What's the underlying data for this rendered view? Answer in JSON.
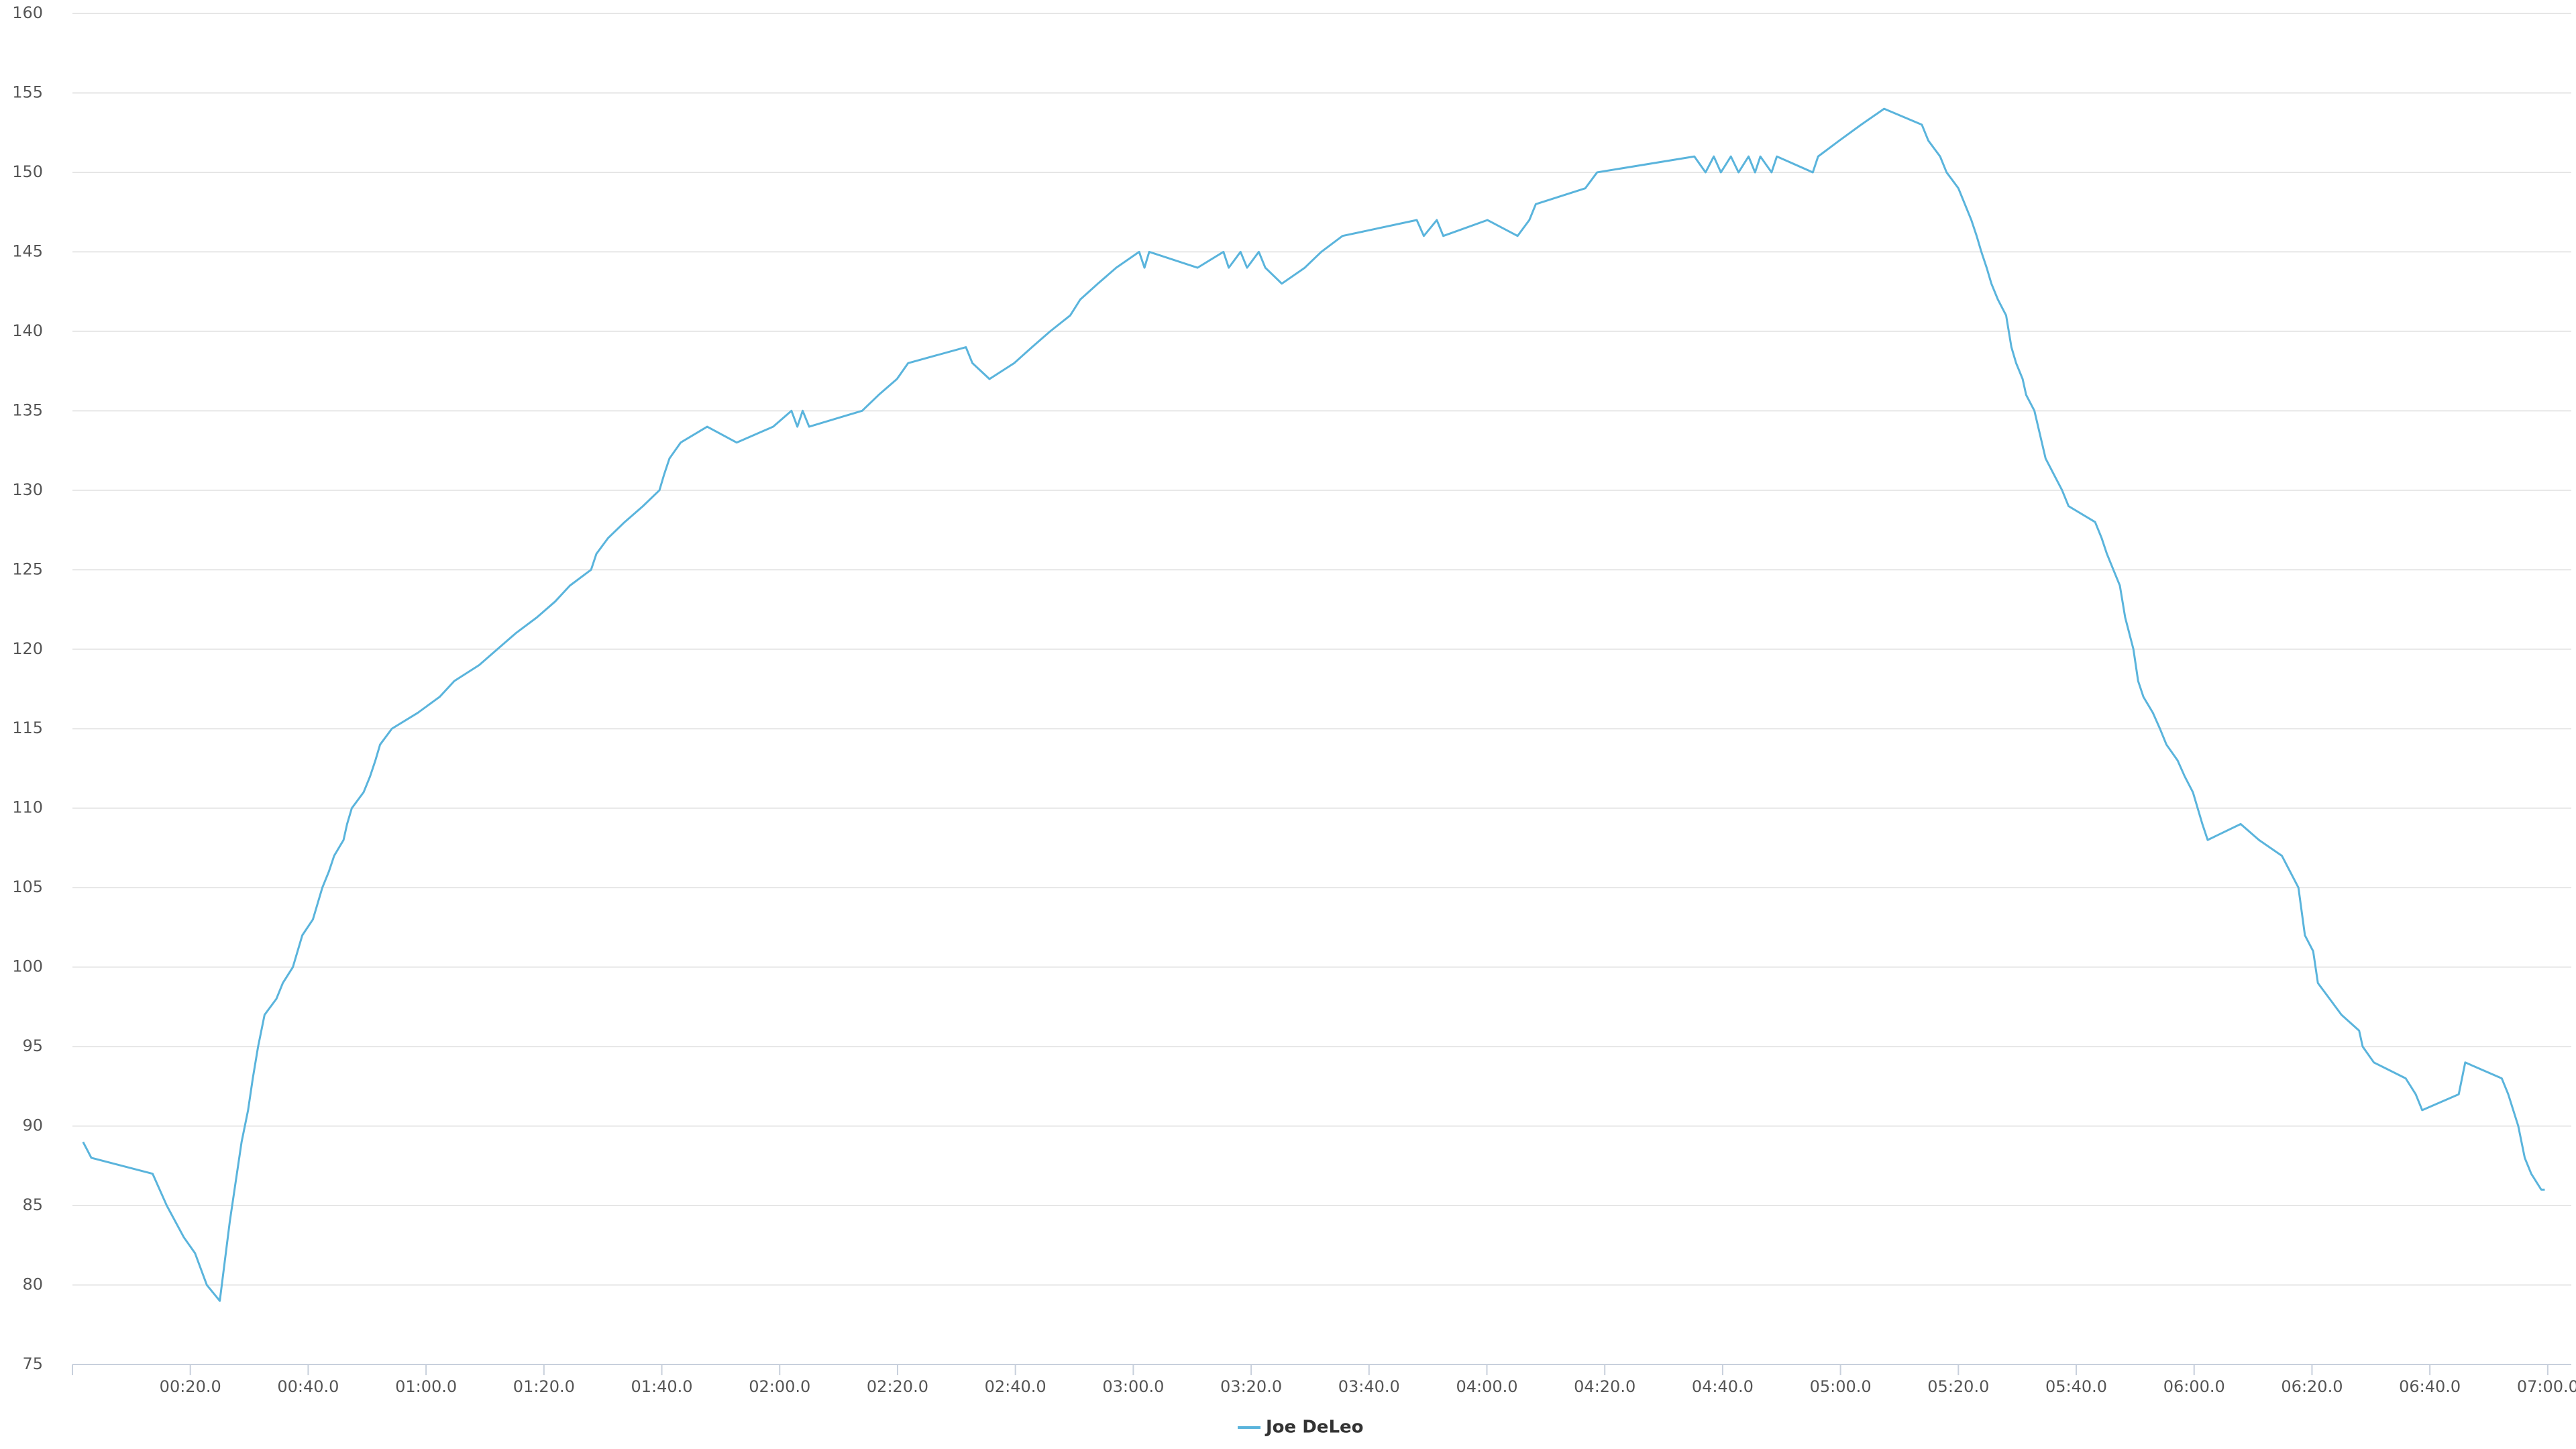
{
  "chart_data": {
    "type": "line",
    "xlim": [
      0,
      424
    ],
    "xticks": [
      {
        "value": 20,
        "label": "00:20.0"
      },
      {
        "value": 40,
        "label": "00:40.0"
      },
      {
        "value": 60,
        "label": "01:00.0"
      },
      {
        "value": 80,
        "label": "01:20.0"
      },
      {
        "value": 100,
        "label": "01:40.0"
      },
      {
        "value": 120,
        "label": "02:00.0"
      },
      {
        "value": 140,
        "label": "02:20.0"
      },
      {
        "value": 160,
        "label": "02:40.0"
      },
      {
        "value": 180,
        "label": "03:00.0"
      },
      {
        "value": 200,
        "label": "03:20.0"
      },
      {
        "value": 220,
        "label": "03:40.0"
      },
      {
        "value": 240,
        "label": "04:00.0"
      },
      {
        "value": 260,
        "label": "04:20.0"
      },
      {
        "value": 280,
        "label": "04:40.0"
      },
      {
        "value": 300,
        "label": "05:00.0"
      },
      {
        "value": 320,
        "label": "05:20.0"
      },
      {
        "value": 340,
        "label": "05:40.0"
      },
      {
        "value": 360,
        "label": "06:00.0"
      },
      {
        "value": 380,
        "label": "06:20.0"
      },
      {
        "value": 400,
        "label": "06:40.0"
      },
      {
        "value": 420,
        "label": "07:00.0"
      }
    ],
    "ylim": [
      75,
      160
    ],
    "yticks": [
      75,
      80,
      85,
      90,
      95,
      100,
      105,
      110,
      115,
      120,
      125,
      130,
      135,
      140,
      145,
      150,
      155,
      160
    ],
    "grid": true,
    "legend": "bottom",
    "x": [
      1.8,
      3.2,
      13.6,
      16,
      18.9,
      20.8,
      22.8,
      25,
      26.7,
      28.7,
      29.8,
      30.6,
      31.5,
      32.6,
      34.6,
      35.7,
      37.4,
      38.2,
      39,
      40.8,
      41.6,
      42.4,
      43.5,
      44.4,
      46,
      46.6,
      47.4,
      49.4,
      50.5,
      51.4,
      52.2,
      54.2,
      58.6,
      62.3,
      64.8,
      69,
      72.1,
      75.2,
      78.8,
      81.9,
      84.4,
      88,
      88.9,
      90.9,
      93.7,
      96.8,
      99.6,
      100.4,
      101.3,
      103.2,
      107.7,
      112.7,
      118.9,
      122,
      123,
      123.9,
      125,
      134,
      136.8,
      139.9,
      141.8,
      151.6,
      152.7,
      155.6,
      159.8,
      162.8,
      165.9,
      169.3,
      171,
      174,
      177.1,
      181,
      181.9,
      182.7,
      190.9,
      195.3,
      196.2,
      198.2,
      199.3,
      201.3,
      202.4,
      205.2,
      209.1,
      211.9,
      215.5,
      228.1,
      229.3,
      231.5,
      232.6,
      240.1,
      245.2,
      247.2,
      248.3,
      256.7,
      258.7,
      275.2,
      277.1,
      278.5,
      279.7,
      281.4,
      282.7,
      284.4,
      285.5,
      286.4,
      288.3,
      289.2,
      295.3,
      296.2,
      299.8,
      303.5,
      307.4,
      313.8,
      314.9,
      316.9,
      318,
      320,
      321.1,
      322.2,
      323.1,
      323.9,
      324.8,
      325.6,
      326.7,
      328.1,
      329,
      329.8,
      330.9,
      331.5,
      332.9,
      334.8,
      336.2,
      337.6,
      338.7,
      343.2,
      344.3,
      345.2,
      346.3,
      347.4,
      348.3,
      349.7,
      350.5,
      351.4,
      353,
      354.2,
      355.3,
      357.2,
      358.4,
      359.8,
      360.6,
      361.4,
      362.3,
      367.9,
      371,
      374.9,
      377.7,
      378.8,
      380.2,
      381,
      383,
      385,
      388,
      388.6,
      390.5,
      395.9,
      397.6,
      398.7,
      404.9,
      406,
      412.2,
      413.3,
      415,
      416.1,
      417.2,
      418.9,
      419.5
    ],
    "series": [
      {
        "name": "Joe DeLeo",
        "color": "#5ab4dc",
        "values": [
          89,
          88,
          87,
          85,
          83,
          82,
          80,
          79,
          84,
          89,
          91,
          93,
          95,
          97,
          98,
          99,
          100,
          101,
          102,
          103,
          104,
          105,
          106,
          107,
          108,
          109,
          110,
          111,
          112,
          113,
          114,
          115,
          116,
          117,
          118,
          119,
          120,
          121,
          122,
          123,
          124,
          125,
          126,
          127,
          128,
          129,
          130,
          131,
          132,
          133,
          134,
          133,
          134,
          135,
          134,
          135,
          134,
          135,
          136,
          137,
          138,
          139,
          138,
          137,
          138,
          139,
          140,
          141,
          142,
          143,
          144,
          145,
          144,
          145,
          144,
          145,
          144,
          145,
          144,
          145,
          144,
          143,
          144,
          145,
          146,
          147,
          146,
          147,
          146,
          147,
          146,
          147,
          148,
          149,
          150,
          151,
          150,
          151,
          150,
          151,
          150,
          151,
          150,
          151,
          150,
          151,
          150,
          151,
          152,
          153,
          154,
          153,
          152,
          151,
          150,
          149,
          148,
          147,
          146,
          145,
          144,
          143,
          142,
          141,
          139,
          138,
          137,
          136,
          135,
          132,
          131,
          130,
          129,
          128,
          127,
          126,
          125,
          124,
          122,
          120,
          118,
          117,
          116,
          115,
          114,
          113,
          112,
          111,
          110,
          109,
          108,
          109,
          108,
          107,
          105,
          102,
          101,
          99,
          98,
          97,
          96,
          95,
          94,
          93,
          92,
          91,
          92,
          94,
          93,
          92,
          90,
          88,
          87,
          86,
          86
        ]
      }
    ]
  }
}
